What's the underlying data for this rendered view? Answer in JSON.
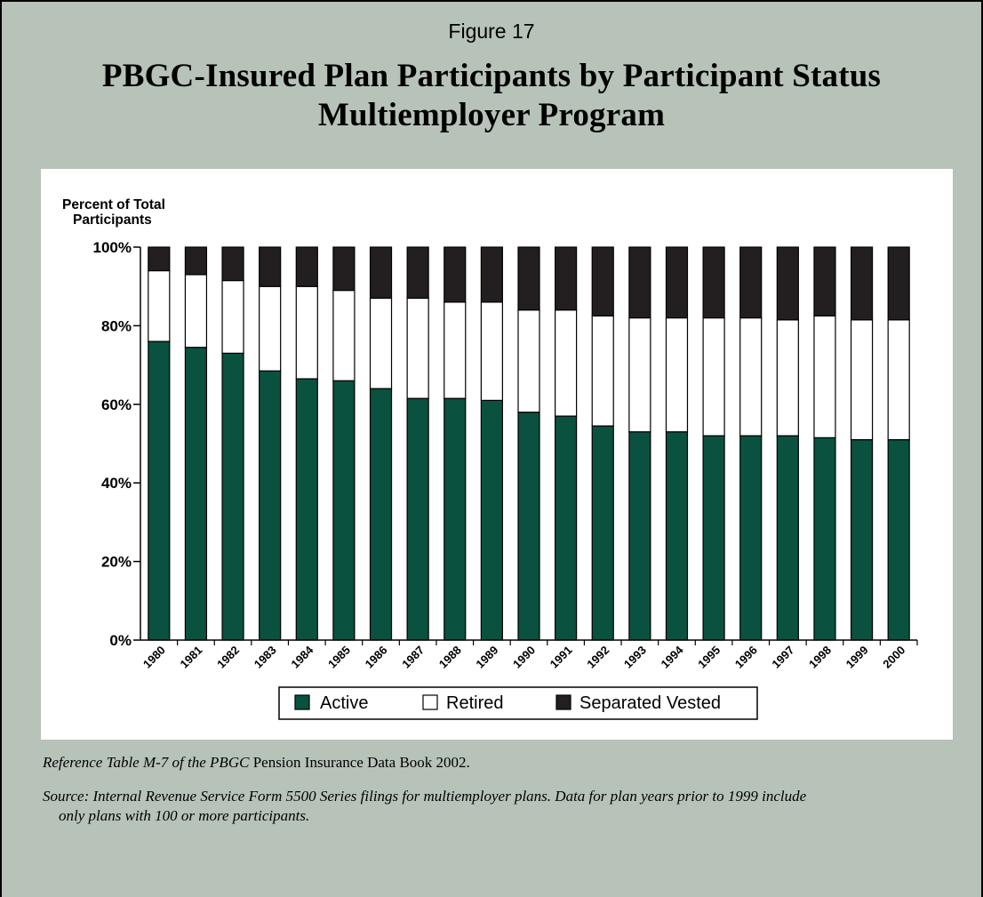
{
  "figure_label": "Figure 17",
  "title_line1": "PBGC-Insured Plan Participants by Participant Status",
  "title_line2": "Multiemployer Program",
  "footnotes": {
    "reference_italic": "Reference Table M-7 of the PBGC",
    "reference_roman": "Pension Insurance Data Book 2002.",
    "source_line1": "Source: Internal Revenue Service Form 5500 Series filings for multiemployer plans.  Data for plan years prior to 1999 include",
    "source_line2": "only plans with 100 or more participants."
  },
  "colors": {
    "background": "#b7c2b9",
    "active": "#0b5140",
    "retired": "#ffffff",
    "separated_vested": "#231f20"
  },
  "chart_data": {
    "type": "bar",
    "stacked": true,
    "title": "",
    "ylabel_line1": "Percent of Total",
    "ylabel_line2": "Participants",
    "xlabel": "",
    "ylim": [
      0,
      100
    ],
    "yticks": [
      0,
      20,
      40,
      60,
      80,
      100
    ],
    "ytick_labels": [
      "0%",
      "20%",
      "40%",
      "60%",
      "80%",
      "100%"
    ],
    "grid": false,
    "legend_position": "bottom-center",
    "categories": [
      "1980",
      "1981",
      "1982",
      "1983",
      "1984",
      "1985",
      "1986",
      "1987",
      "1988",
      "1989",
      "1990",
      "1991",
      "1992",
      "1993",
      "1994",
      "1995",
      "1996",
      "1997",
      "1998",
      "1999",
      "2000"
    ],
    "series": [
      {
        "name": "Active",
        "color_key": "active",
        "values": [
          76,
          74.5,
          73,
          68.5,
          66.5,
          66,
          64,
          61.5,
          61.5,
          61,
          58,
          57,
          54.5,
          53,
          53,
          52,
          52,
          52,
          51.5,
          51,
          51
        ]
      },
      {
        "name": "Retired",
        "color_key": "retired",
        "values": [
          18,
          18.5,
          18.5,
          21.5,
          23.5,
          23,
          23,
          25.5,
          24.5,
          25,
          26,
          27,
          28,
          29,
          29,
          30,
          30,
          29.5,
          31,
          30.5,
          30.5
        ]
      },
      {
        "name": "Separated Vested",
        "color_key": "separated_vested",
        "values": [
          6,
          7,
          8.5,
          10,
          10,
          11,
          13,
          13,
          14,
          14,
          16,
          16,
          17.5,
          18,
          18,
          18,
          18,
          18.5,
          17.5,
          18.5,
          18.5
        ]
      }
    ]
  }
}
